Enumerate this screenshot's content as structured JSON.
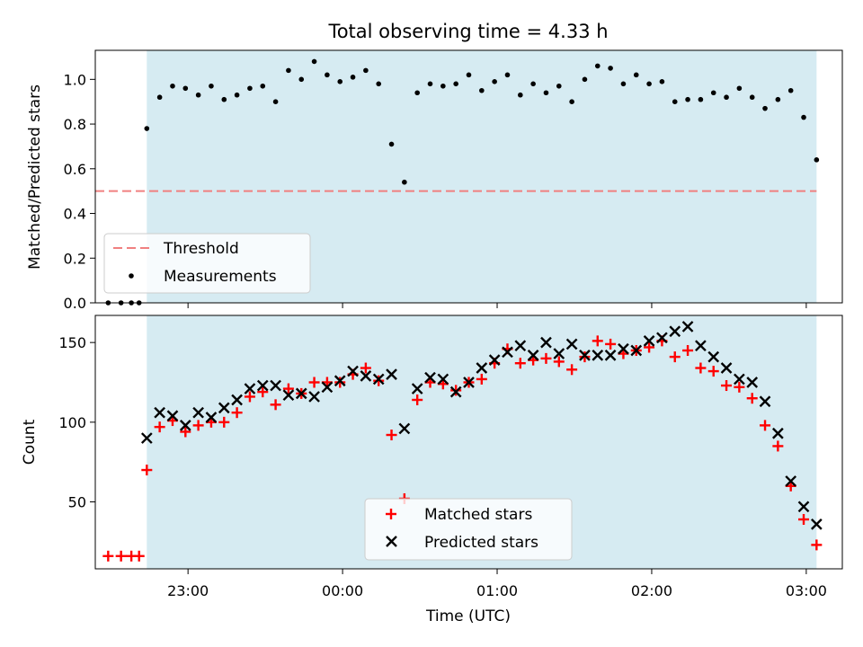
{
  "chart_data": [
    {
      "type": "scatter",
      "title": "Total observing time = 4.33 h",
      "xlabel": "",
      "ylabel": "Matched/Predicted stars",
      "xlim": [
        "22:24",
        "03:14"
      ],
      "ylim": [
        0,
        1.13
      ],
      "yticks": [
        0.0,
        0.2,
        0.4,
        0.6,
        0.8,
        1.0
      ],
      "ytick_labels": [
        "0.0",
        "0.2",
        "0.4",
        "0.6",
        "0.8",
        "1.0"
      ],
      "xticks": [
        "23:00",
        "00:00",
        "01:00",
        "02:00",
        "03:00"
      ],
      "shaded_region": [
        "22:44",
        "03:04"
      ],
      "shade_color": "#add8e6",
      "threshold": {
        "name": "Threshold",
        "value": 0.5,
        "x": [
          "22:24",
          "03:04"
        ],
        "color": "#f08080"
      },
      "legend": {
        "placement": "lower-left",
        "entries": [
          "Threshold",
          "Measurements"
        ]
      },
      "series": [
        {
          "name": "Measurements",
          "color": "#000000",
          "x": [
            "22:29",
            "22:34",
            "22:38",
            "22:41",
            "22:44",
            "22:49",
            "22:54",
            "22:59",
            "23:04",
            "23:09",
            "23:14",
            "23:19",
            "23:24",
            "23:29",
            "23:34",
            "23:39",
            "23:44",
            "23:49",
            "23:54",
            "23:59",
            "00:04",
            "00:09",
            "00:14",
            "00:19",
            "00:24",
            "00:29",
            "00:34",
            "00:39",
            "00:44",
            "00:49",
            "00:54",
            "00:59",
            "01:04",
            "01:09",
            "01:14",
            "01:19",
            "01:24",
            "01:29",
            "01:34",
            "01:39",
            "01:44",
            "01:49",
            "01:54",
            "01:59",
            "02:04",
            "02:09",
            "02:14",
            "02:19",
            "02:24",
            "02:29",
            "02:34",
            "02:39",
            "02:44",
            "02:49",
            "02:54",
            "02:59",
            "03:04"
          ],
          "y": [
            0,
            0,
            0,
            0,
            0.78,
            0.92,
            0.97,
            0.96,
            0.93,
            0.97,
            0.91,
            0.93,
            0.96,
            0.97,
            0.9,
            1.04,
            1.0,
            1.08,
            1.02,
            0.99,
            1.01,
            1.04,
            0.98,
            0.71,
            0.54,
            0.94,
            0.98,
            0.97,
            0.98,
            1.02,
            0.95,
            0.99,
            1.02,
            0.93,
            0.98,
            0.94,
            0.97,
            0.9,
            1.0,
            1.06,
            1.05,
            0.98,
            1.02,
            0.98,
            0.99,
            0.9,
            0.91,
            0.91,
            0.94,
            0.92,
            0.96,
            0.92,
            0.87,
            0.91,
            0.95,
            0.83,
            0.64
          ]
        }
      ]
    },
    {
      "type": "scatter",
      "title": "",
      "xlabel": "Time (UTC)",
      "ylabel": "Count",
      "xlim": [
        "22:24",
        "03:14"
      ],
      "ylim": [
        8,
        167
      ],
      "yticks": [
        50,
        100,
        150
      ],
      "ytick_labels": [
        "50",
        "100",
        "150"
      ],
      "xticks": [
        "23:00",
        "00:00",
        "01:00",
        "02:00",
        "03:00"
      ],
      "shaded_region": [
        "22:44",
        "03:04"
      ],
      "shade_color": "#add8e6",
      "legend": {
        "placement": "lower-center",
        "entries": [
          "Matched stars",
          "Predicted stars"
        ]
      },
      "series": [
        {
          "name": "Matched stars",
          "color": "#ff0000",
          "marker": "plus",
          "x": [
            "22:29",
            "22:34",
            "22:38",
            "22:41",
            "22:44",
            "22:49",
            "22:54",
            "22:59",
            "23:04",
            "23:09",
            "23:14",
            "23:19",
            "23:24",
            "23:29",
            "23:34",
            "23:39",
            "23:44",
            "23:49",
            "23:54",
            "23:59",
            "00:04",
            "00:09",
            "00:14",
            "00:19",
            "00:24",
            "00:29",
            "00:34",
            "00:39",
            "00:44",
            "00:49",
            "00:54",
            "00:59",
            "01:04",
            "01:09",
            "01:14",
            "01:19",
            "01:24",
            "01:29",
            "01:34",
            "01:39",
            "01:44",
            "01:49",
            "01:54",
            "01:59",
            "02:04",
            "02:09",
            "02:14",
            "02:19",
            "02:24",
            "02:29",
            "02:34",
            "02:39",
            "02:44",
            "02:49",
            "02:54",
            "02:59",
            "03:04"
          ],
          "y": [
            16,
            16,
            16,
            16,
            70,
            97,
            101,
            94,
            98,
            100,
            100,
            106,
            116,
            119,
            111,
            121,
            118,
            125,
            125,
            125,
            130,
            134,
            126,
            92,
            52,
            114,
            125,
            124,
            120,
            125,
            127,
            137,
            146,
            137,
            139,
            140,
            138,
            133,
            141,
            151,
            149,
            143,
            145,
            147,
            151,
            141,
            145,
            134,
            132,
            123,
            122,
            115,
            98,
            85,
            60,
            39,
            23
          ]
        },
        {
          "name": "Predicted stars",
          "color": "#000000",
          "marker": "x",
          "x": [
            "22:44",
            "22:49",
            "22:54",
            "22:59",
            "23:04",
            "23:09",
            "23:14",
            "23:19",
            "23:24",
            "23:29",
            "23:34",
            "23:39",
            "23:44",
            "23:49",
            "23:54",
            "23:59",
            "00:04",
            "00:09",
            "00:14",
            "00:19",
            "00:24",
            "00:29",
            "00:34",
            "00:39",
            "00:44",
            "00:49",
            "00:54",
            "00:59",
            "01:04",
            "01:09",
            "01:14",
            "01:19",
            "01:24",
            "01:29",
            "01:34",
            "01:39",
            "01:44",
            "01:49",
            "01:54",
            "01:59",
            "02:04",
            "02:09",
            "02:14",
            "02:19",
            "02:24",
            "02:29",
            "02:34",
            "02:39",
            "02:44",
            "02:49",
            "02:54",
            "02:59",
            "03:04"
          ],
          "y": [
            90,
            106,
            104,
            98,
            106,
            103,
            109,
            114,
            121,
            123,
            123,
            117,
            118,
            116,
            122,
            126,
            132,
            129,
            127,
            130,
            96,
            121,
            128,
            127,
            119,
            125,
            134,
            139,
            144,
            148,
            142,
            150,
            143,
            149,
            142,
            142,
            142,
            146,
            145,
            151,
            153,
            157,
            160,
            148,
            141,
            134,
            127,
            125,
            113,
            93,
            63,
            47,
            36
          ]
        }
      ]
    }
  ]
}
